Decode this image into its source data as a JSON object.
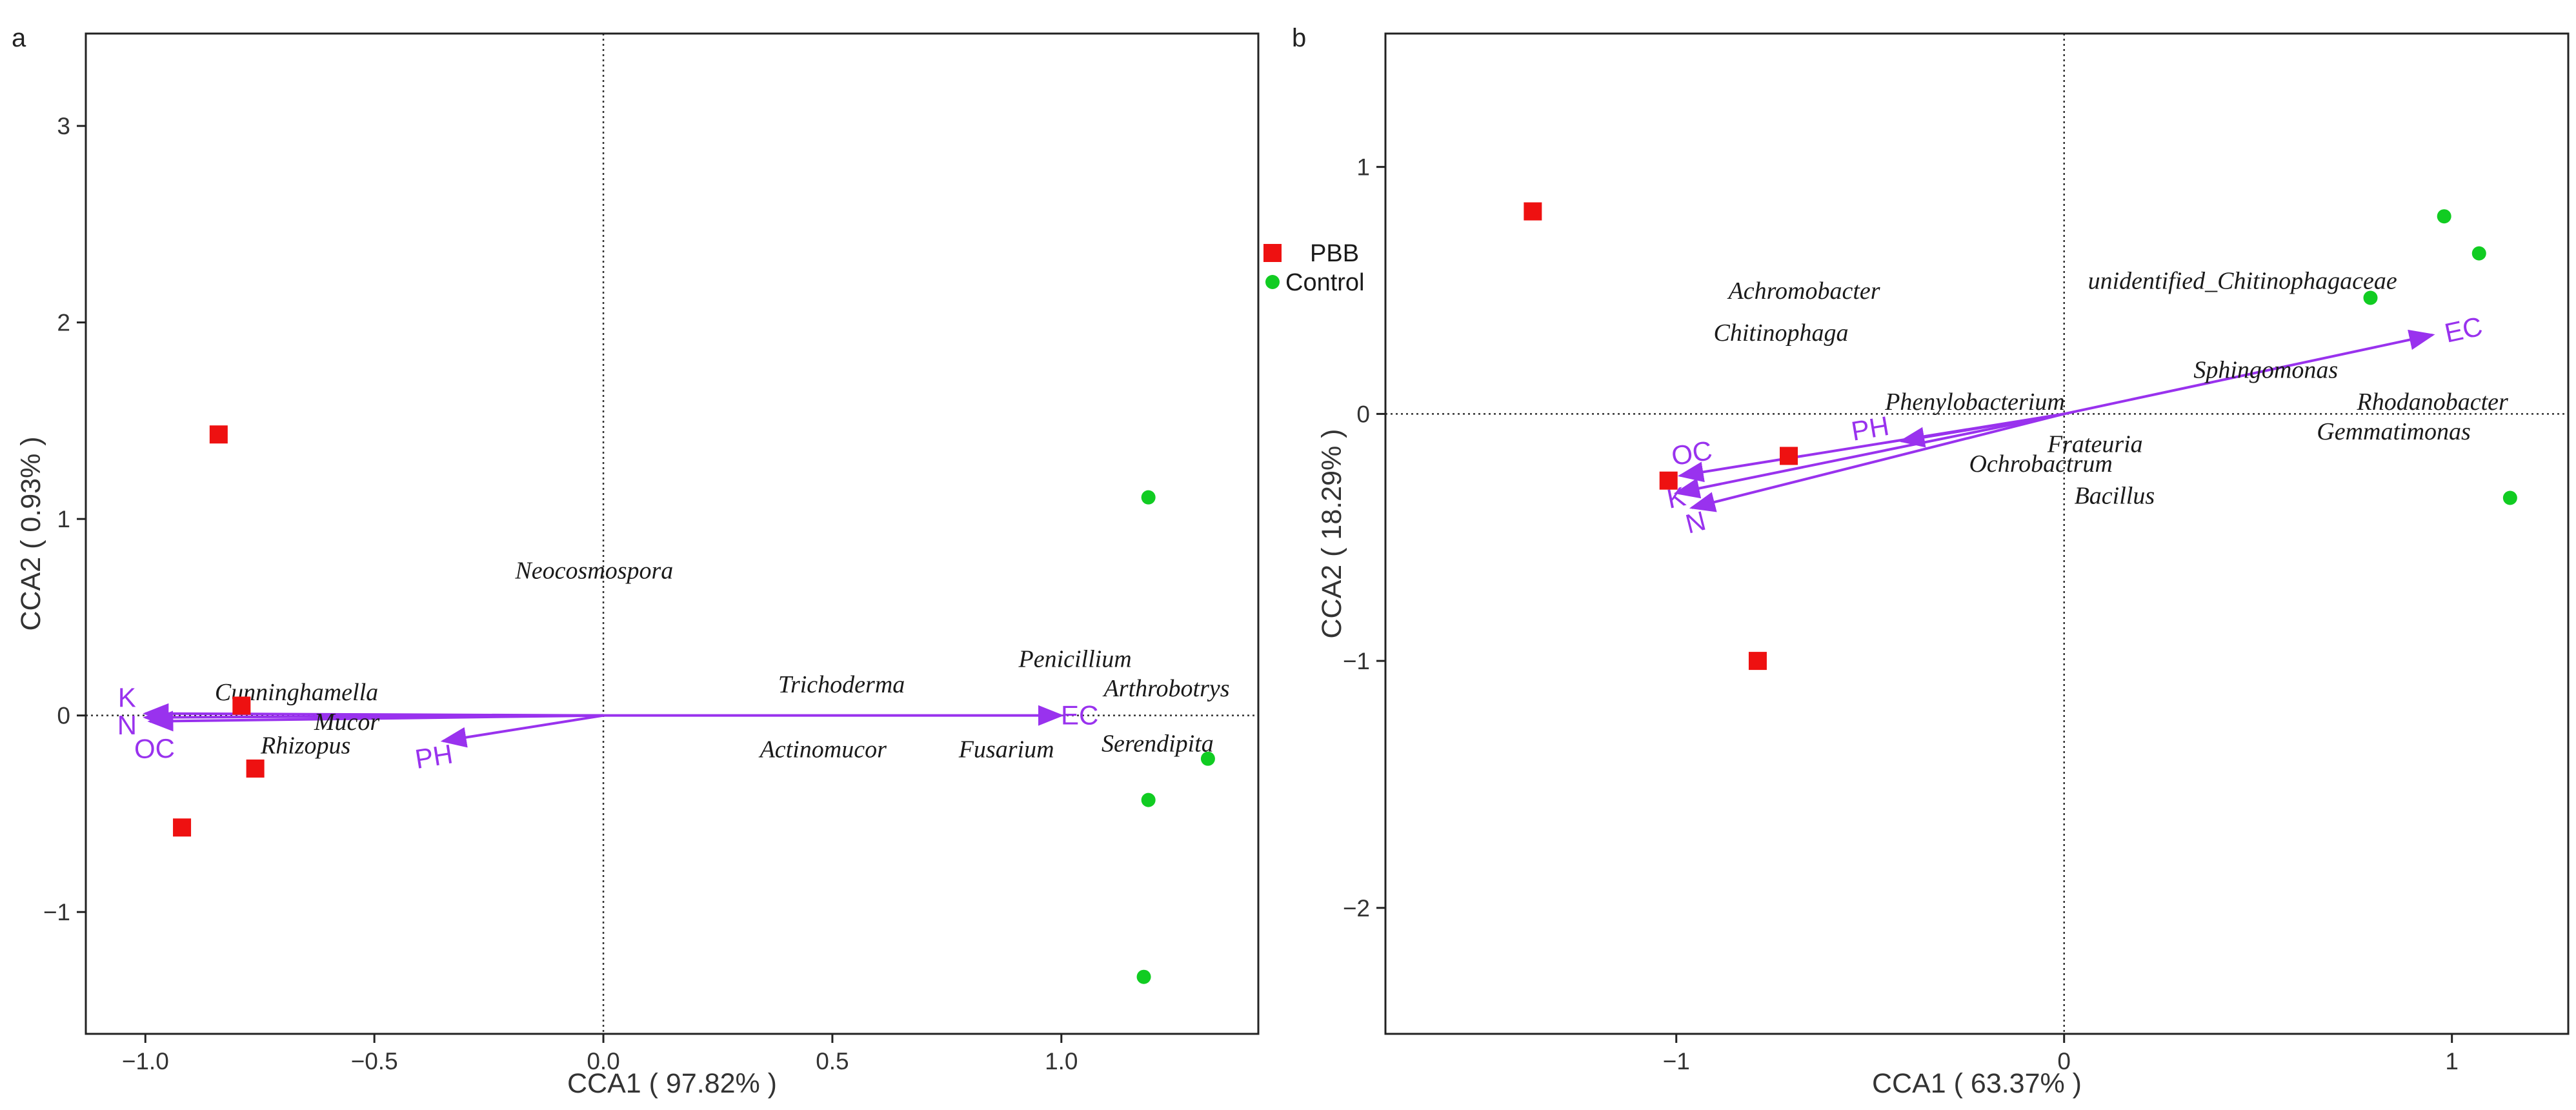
{
  "colors": {
    "pbb": "#ee1111",
    "control": "#11cc22",
    "arrow": "#9932ee",
    "frame": "#222222",
    "guide": "#333333"
  },
  "legend": [
    {
      "label": "PBB",
      "shape": "square",
      "color": "#ee1111"
    },
    {
      "label": "Control",
      "shape": "circle",
      "color": "#11cc22"
    }
  ],
  "chart_data": [
    {
      "panel": "a",
      "type": "scatter",
      "xlabel": "CCA1 ( 97.82% )",
      "ylabel": "CCA2 ( 0.93% )",
      "xlim": [
        -1.13,
        1.43
      ],
      "ylim": [
        -1.62,
        3.47
      ],
      "xticks": [
        -1.0,
        -0.5,
        0.0,
        0.5,
        1.0
      ],
      "xtick_labels": [
        "−1.0",
        "−0.5",
        "0.0",
        "0.5",
        "1.0"
      ],
      "yticks": [
        -1,
        0,
        1,
        2,
        3
      ],
      "ytick_labels": [
        "−1",
        "0",
        "1",
        "2",
        "3"
      ],
      "samples": [
        {
          "group": "PBB",
          "x": -0.84,
          "y": 1.43
        },
        {
          "group": "PBB",
          "x": -0.79,
          "y": 0.05
        },
        {
          "group": "PBB",
          "x": -0.76,
          "y": -0.27
        },
        {
          "group": "PBB",
          "x": -0.92,
          "y": -0.57
        },
        {
          "group": "Control",
          "x": 1.19,
          "y": 1.11
        },
        {
          "group": "Control",
          "x": 1.32,
          "y": -0.22
        },
        {
          "group": "Control",
          "x": 1.19,
          "y": -0.43
        },
        {
          "group": "Control",
          "x": 1.18,
          "y": -1.33
        }
      ],
      "genera": [
        {
          "name": "Neocosmospora",
          "x": -0.02,
          "y": 0.74
        },
        {
          "name": "Cunninghamella",
          "x": -0.67,
          "y": 0.12
        },
        {
          "name": "Mucor",
          "x": -0.56,
          "y": -0.03
        },
        {
          "name": "Rhizopus",
          "x": -0.65,
          "y": -0.15
        },
        {
          "name": "Trichoderma",
          "x": 0.52,
          "y": 0.16
        },
        {
          "name": "Penicillium",
          "x": 1.03,
          "y": 0.29
        },
        {
          "name": "Arthrobotrys",
          "x": 1.23,
          "y": 0.14
        },
        {
          "name": "Actinomucor",
          "x": 0.48,
          "y": -0.17
        },
        {
          "name": "Fusarium",
          "x": 0.88,
          "y": -0.17
        },
        {
          "name": "Serendipita",
          "x": 1.21,
          "y": -0.14
        }
      ],
      "env": [
        {
          "name": "K",
          "x": -1.0,
          "y": 0.01,
          "lx": -1.04,
          "ly": 0.09
        },
        {
          "name": "N",
          "x": -1.0,
          "y": -0.01,
          "lx": -1.04,
          "ly": -0.05
        },
        {
          "name": "OC",
          "x": -0.99,
          "y": -0.03,
          "lx": -0.98,
          "ly": -0.17
        },
        {
          "name": "PH",
          "x": -0.35,
          "y": -0.13,
          "lx": -0.37,
          "ly": -0.21
        },
        {
          "name": "EC",
          "x": 1.0,
          "y": 0.0,
          "lx": 1.04,
          "ly": 0.0
        }
      ]
    },
    {
      "panel": "b",
      "type": "scatter",
      "xlabel": "CCA1 ( 63.37% )",
      "ylabel": "CCA2 ( 18.29% )",
      "xlim": [
        -1.75,
        1.3
      ],
      "ylim": [
        -2.51,
        1.54
      ],
      "xticks": [
        -1,
        0,
        1
      ],
      "xtick_labels": [
        "−1",
        "0",
        "1"
      ],
      "yticks": [
        -2,
        -1,
        0,
        1
      ],
      "ytick_labels": [
        "−2",
        "−1",
        "0",
        "1"
      ],
      "samples": [
        {
          "group": "PBB",
          "x": -1.37,
          "y": 0.82
        },
        {
          "group": "PBB",
          "x": -0.71,
          "y": -0.17
        },
        {
          "group": "PBB",
          "x": -1.02,
          "y": -0.27
        },
        {
          "group": "PBB",
          "x": -0.79,
          "y": -1.0
        },
        {
          "group": "Control",
          "x": 0.98,
          "y": 0.8
        },
        {
          "group": "Control",
          "x": 1.07,
          "y": 0.65
        },
        {
          "group": "Control",
          "x": 0.79,
          "y": 0.47
        },
        {
          "group": "Control",
          "x": 1.15,
          "y": -0.34
        }
      ],
      "genera": [
        {
          "name": "Achromobacter",
          "x": -0.67,
          "y": 0.5
        },
        {
          "name": "Chitinophaga",
          "x": -0.73,
          "y": 0.33
        },
        {
          "name": "unidentified_Chitinophagaceae",
          "x": 0.46,
          "y": 0.54
        },
        {
          "name": "Sphingomonas",
          "x": 0.52,
          "y": 0.18
        },
        {
          "name": "Rhodanobacter",
          "x": 0.95,
          "y": 0.05
        },
        {
          "name": "Gemmatimonas",
          "x": 0.85,
          "y": -0.07
        },
        {
          "name": "Phenylobacterium",
          "x": -0.23,
          "y": 0.05
        },
        {
          "name": "Frateuria",
          "x": 0.08,
          "y": -0.12
        },
        {
          "name": "Ochrobactrum",
          "x": -0.06,
          "y": -0.2
        },
        {
          "name": "Bacillus",
          "x": 0.13,
          "y": -0.33
        }
      ],
      "env": [
        {
          "name": "EC",
          "x": 0.95,
          "y": 0.32,
          "lx": 1.03,
          "ly": 0.34
        },
        {
          "name": "PH",
          "x": -0.42,
          "y": -0.11,
          "lx": -0.5,
          "ly": -0.06
        },
        {
          "name": "OC",
          "x": -0.99,
          "y": -0.25,
          "lx": -0.96,
          "ly": -0.16
        },
        {
          "name": "K",
          "x": -1.0,
          "y": -0.32,
          "lx": -1.0,
          "ly": -0.34
        },
        {
          "name": "N",
          "x": -0.96,
          "y": -0.38,
          "lx": -0.95,
          "ly": -0.44
        }
      ]
    }
  ]
}
